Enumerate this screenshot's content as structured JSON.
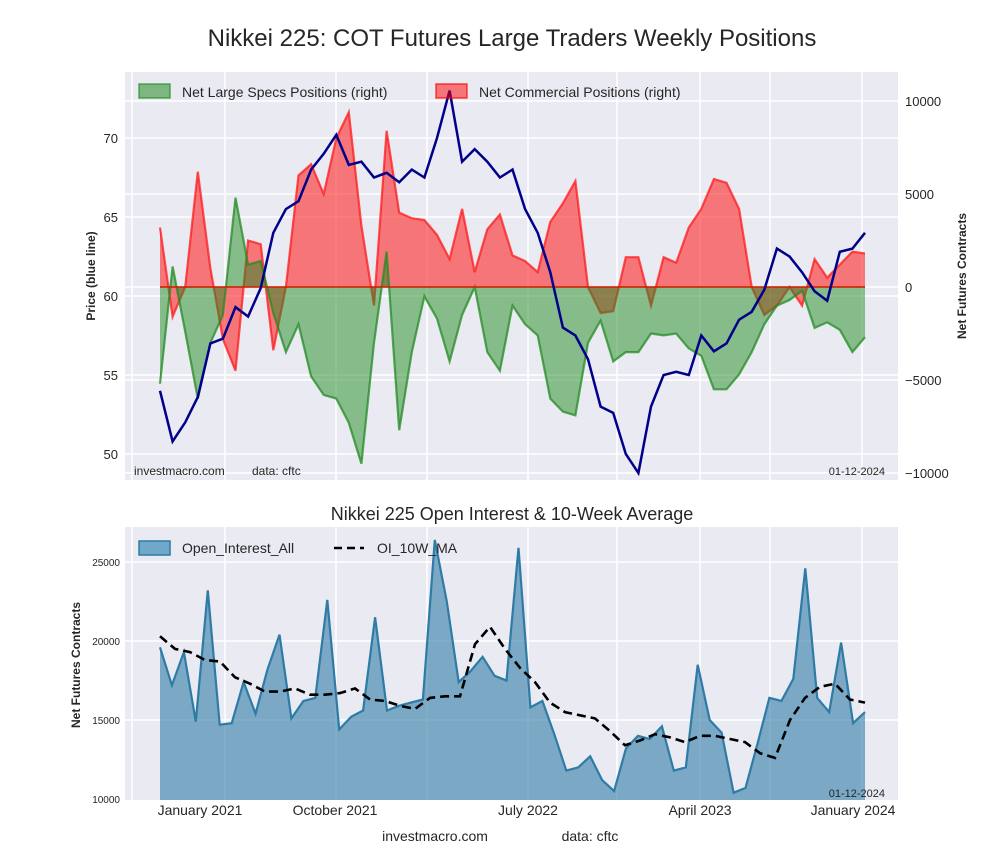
{
  "chart_data": [
    {
      "type": "line+area",
      "title": "Nikkei 225: COT Futures Large Traders Weekly Positions",
      "ylabel_left": "Price (blue line)",
      "ylabel_right": "Net Futures Contracts",
      "ylim_left": [
        48.5,
        73.5
      ],
      "ylim_right": [
        -10300,
        11000
      ],
      "yticks_left": [
        "50",
        "55",
        "60",
        "65",
        "70"
      ],
      "yticks_right": [
        "−10000",
        "−5000",
        "0",
        "5000",
        "10000"
      ],
      "grid": true,
      "legend_position": "top-left",
      "legend": [
        "Net Large Specs Positions (right)",
        "Net Commercial Positions (right)"
      ],
      "watermark": "investmacro.com",
      "source_note": "data: cftc",
      "date_stamp": "01-12-2024",
      "colors": {
        "price": "#00008b",
        "specs": "#228b22",
        "commercial": "#ff0000",
        "background": "#eaeaf2"
      },
      "x_dates": [
        "2020-11",
        "2020-11",
        "2020-12",
        "2021-01",
        "2021-02",
        "2021-03",
        "2021-04",
        "2021-05",
        "2021-06",
        "2021-06",
        "2021-07",
        "2021-07",
        "2021-08",
        "2021-08",
        "2021-09",
        "2021-09",
        "2021-10",
        "2021-10",
        "2021-11",
        "2021-11",
        "2021-12",
        "2021-12",
        "2022-01",
        "2022-01",
        "2022-02",
        "2022-02",
        "2022-03",
        "2022-03",
        "2022-04",
        "2022-04",
        "2022-05",
        "2022-05",
        "2022-06",
        "2022-06",
        "2022-07",
        "2022-08",
        "2022-09",
        "2022-10",
        "2022-10",
        "2022-11",
        "2022-12",
        "2023-01",
        "2023-01",
        "2023-02",
        "2023-03",
        "2023-04",
        "2023-04",
        "2023-05",
        "2023-06",
        "2023-07",
        "2023-07",
        "2023-08",
        "2023-09",
        "2023-10",
        "2023-10",
        "2023-11",
        "2023-12"
      ],
      "series": [
        {
          "name": "Price",
          "axis": "left",
          "values": [
            54.0,
            50.8,
            52.0,
            53.6,
            57.0,
            57.3,
            59.3,
            58.7,
            60.5,
            64.0,
            65.5,
            66.0,
            68.0,
            69.0,
            70.2,
            68.3,
            68.5,
            67.5,
            67.8,
            67.2,
            68.0,
            67.5,
            70.0,
            73.0,
            68.5,
            69.3,
            68.5,
            67.5,
            68.0,
            65.5,
            64.0,
            61.5,
            58.0,
            57.5,
            56.0,
            53.0,
            52.6,
            50.0,
            48.8,
            53.0,
            55.0,
            55.2,
            55.0,
            57.5,
            56.5,
            57.0,
            58.5,
            59.0,
            60.4,
            63.0,
            62.5,
            61.5,
            60.3,
            59.7,
            62.8,
            63.0,
            64.0
          ]
        },
        {
          "name": "Net Large Specs Positions (right)",
          "axis": "right",
          "values": [
            -5200,
            1100,
            -2400,
            -6000,
            -3000,
            -1500,
            4800,
            1200,
            1400,
            -1400,
            -3500,
            -2000,
            -4800,
            -5800,
            -6000,
            -7300,
            -9500,
            -3000,
            1900,
            -7700,
            -3500,
            -500,
            -1700,
            -4000,
            -1500,
            0,
            -3500,
            -4500,
            -1000,
            -2000,
            -2600,
            -6000,
            -6700,
            -6900,
            -3000,
            -1800,
            -4000,
            -3500,
            -3500,
            -2500,
            -2600,
            -2500,
            -3300,
            -3700,
            -5500,
            -5500,
            -4700,
            -3500,
            -2000,
            -1000,
            -700,
            -200,
            -2200,
            -1900,
            -2300,
            -3500,
            -2700
          ]
        },
        {
          "name": "Net Commercial Positions (right)",
          "axis": "right",
          "values": [
            3200,
            -1600,
            0,
            6200,
            1000,
            -2800,
            -4500,
            2500,
            2300,
            -3400,
            0,
            6000,
            6600,
            5000,
            8000,
            9400,
            3300,
            -1000,
            8400,
            4000,
            3700,
            3600,
            2800,
            1500,
            4200,
            800,
            3100,
            3900,
            1700,
            1400,
            800,
            3500,
            4500,
            5700,
            0,
            -1400,
            -1300,
            1600,
            1600,
            -1000,
            1600,
            1300,
            3200,
            4200,
            5800,
            5600,
            4200,
            0,
            -1500,
            -1000,
            0,
            -1000,
            1500,
            500,
            1200,
            1900,
            1800
          ]
        }
      ],
      "xticks": [
        "January 2021",
        "October 2021",
        "July 2022",
        "April 2023",
        "January 2024"
      ]
    },
    {
      "type": "area+line",
      "title": "Nikkei 225 Open Interest & 10-Week Average",
      "ylabel": "Net Futures Contracts",
      "ylim": [
        10000,
        27000
      ],
      "yticks": [
        "10000",
        "15000",
        "20000",
        "25000"
      ],
      "grid": true,
      "legend_position": "top-left",
      "legend": [
        "Open_Interest_All",
        "OI_10W_MA"
      ],
      "date_stamp": "01-12-2024",
      "colors": {
        "oi": "#2e7ba6",
        "oi_fill": "#6fa8c9",
        "ma": "#000000",
        "background": "#eaeaf2"
      },
      "xticks": [
        "January 2021",
        "October 2021",
        "July 2022",
        "April 2023",
        "January 2024"
      ],
      "series": [
        {
          "name": "Open_Interest_All",
          "values": [
            19600,
            17200,
            19300,
            14900,
            23200,
            14700,
            14800,
            17400,
            15400,
            18200,
            20400,
            15100,
            16200,
            16400,
            22600,
            14400,
            15200,
            15600,
            21500,
            15600,
            15900,
            16100,
            16300,
            26400,
            22500,
            17400,
            18100,
            19000,
            17800,
            17500,
            25900,
            15800,
            16200,
            14100,
            11800,
            12000,
            12700,
            11200,
            10500,
            13200,
            14000,
            13800,
            14600,
            11800,
            12000,
            18500,
            15000,
            14200,
            10400,
            10700,
            13500,
            16400,
            16200,
            17600,
            24600,
            16400,
            15500,
            19900,
            14800,
            15500
          ]
        },
        {
          "name": "OI_10W_MA",
          "values": [
            20300,
            19500,
            19300,
            18800,
            18700,
            17700,
            17300,
            16800,
            16800,
            17000,
            16600,
            16600,
            16700,
            17000,
            16300,
            16200,
            15900,
            15700,
            16400,
            16500,
            16500,
            19800,
            20900,
            19500,
            18300,
            17400,
            16100,
            15500,
            15300,
            15100,
            14300,
            13400,
            13700,
            14100,
            13900,
            13600,
            14000,
            14000,
            13800,
            13600,
            12900,
            12600,
            15000,
            16400,
            17100,
            17300,
            16300,
            16100
          ]
        }
      ]
    }
  ],
  "footer": {
    "site": "investmacro.com",
    "source": "data: cftc"
  }
}
